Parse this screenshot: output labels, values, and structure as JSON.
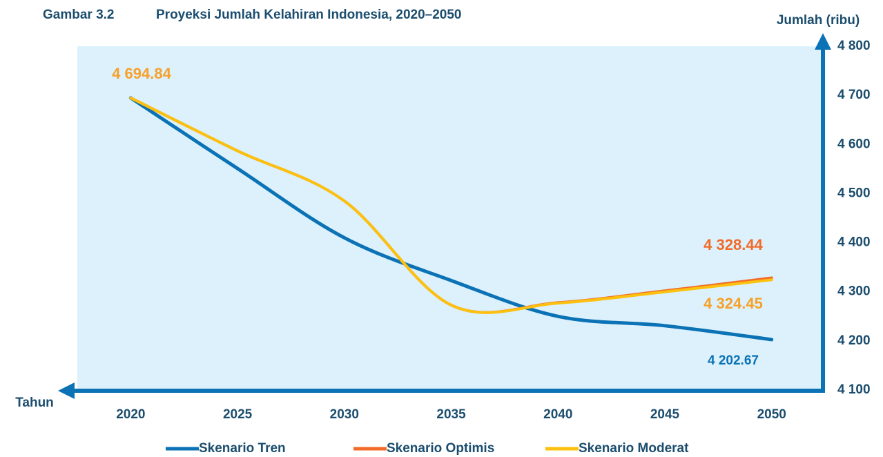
{
  "chart_data": {
    "type": "line",
    "figure_number": "Gambar 3.2",
    "title": "Proyeksi Jumlah Kelahiran Indonesia, 2020–2050",
    "y_label": "Jumlah (ribu)",
    "x_label": "Tahun",
    "x": [
      2020,
      2025,
      2030,
      2035,
      2040,
      2045,
      2050
    ],
    "xlim": [
      2017.5,
      2052.4
    ],
    "xticks": [
      2020,
      2025,
      2030,
      2035,
      2040,
      2045,
      2050
    ],
    "ylim": [
      4100,
      4800
    ],
    "yticks": [
      {
        "value": 4100,
        "label": "4 100"
      },
      {
        "value": 4200,
        "label": "4 200"
      },
      {
        "value": 4300,
        "label": "4 300"
      },
      {
        "value": 4400,
        "label": "4 400"
      },
      {
        "value": 4500,
        "label": "4 500"
      },
      {
        "value": 4600,
        "label": "4 600"
      },
      {
        "value": 4700,
        "label": "4 700"
      },
      {
        "value": 4800,
        "label": "4 800"
      }
    ],
    "series": [
      {
        "name": "Skenario Tren",
        "color": "#0b72b5",
        "label_color": "#0b72b5",
        "values": [
          4694.84,
          4551,
          4410,
          4323,
          4250,
          4231,
          4202.67
        ],
        "value_labels": [
          null,
          null,
          null,
          null,
          null,
          null,
          "4 202.67"
        ]
      },
      {
        "name": "Skenario Optimis",
        "color": "#f26b2a",
        "label_color": "#f26b2a",
        "values": [
          4694.84,
          4587,
          4485,
          4273,
          4278,
          4302,
          4328.44
        ],
        "value_labels": [
          null,
          null,
          null,
          null,
          null,
          null,
          "4 328.44"
        ]
      },
      {
        "name": "Skenario Moderat",
        "color": "#fcc10f",
        "label_color": "#f7a02b",
        "values": [
          4694.84,
          4587,
          4485,
          4273,
          4277,
          4300,
          4324.45
        ],
        "value_labels": [
          "4 694.84",
          null,
          null,
          null,
          null,
          null,
          "4 324.45"
        ]
      }
    ]
  }
}
